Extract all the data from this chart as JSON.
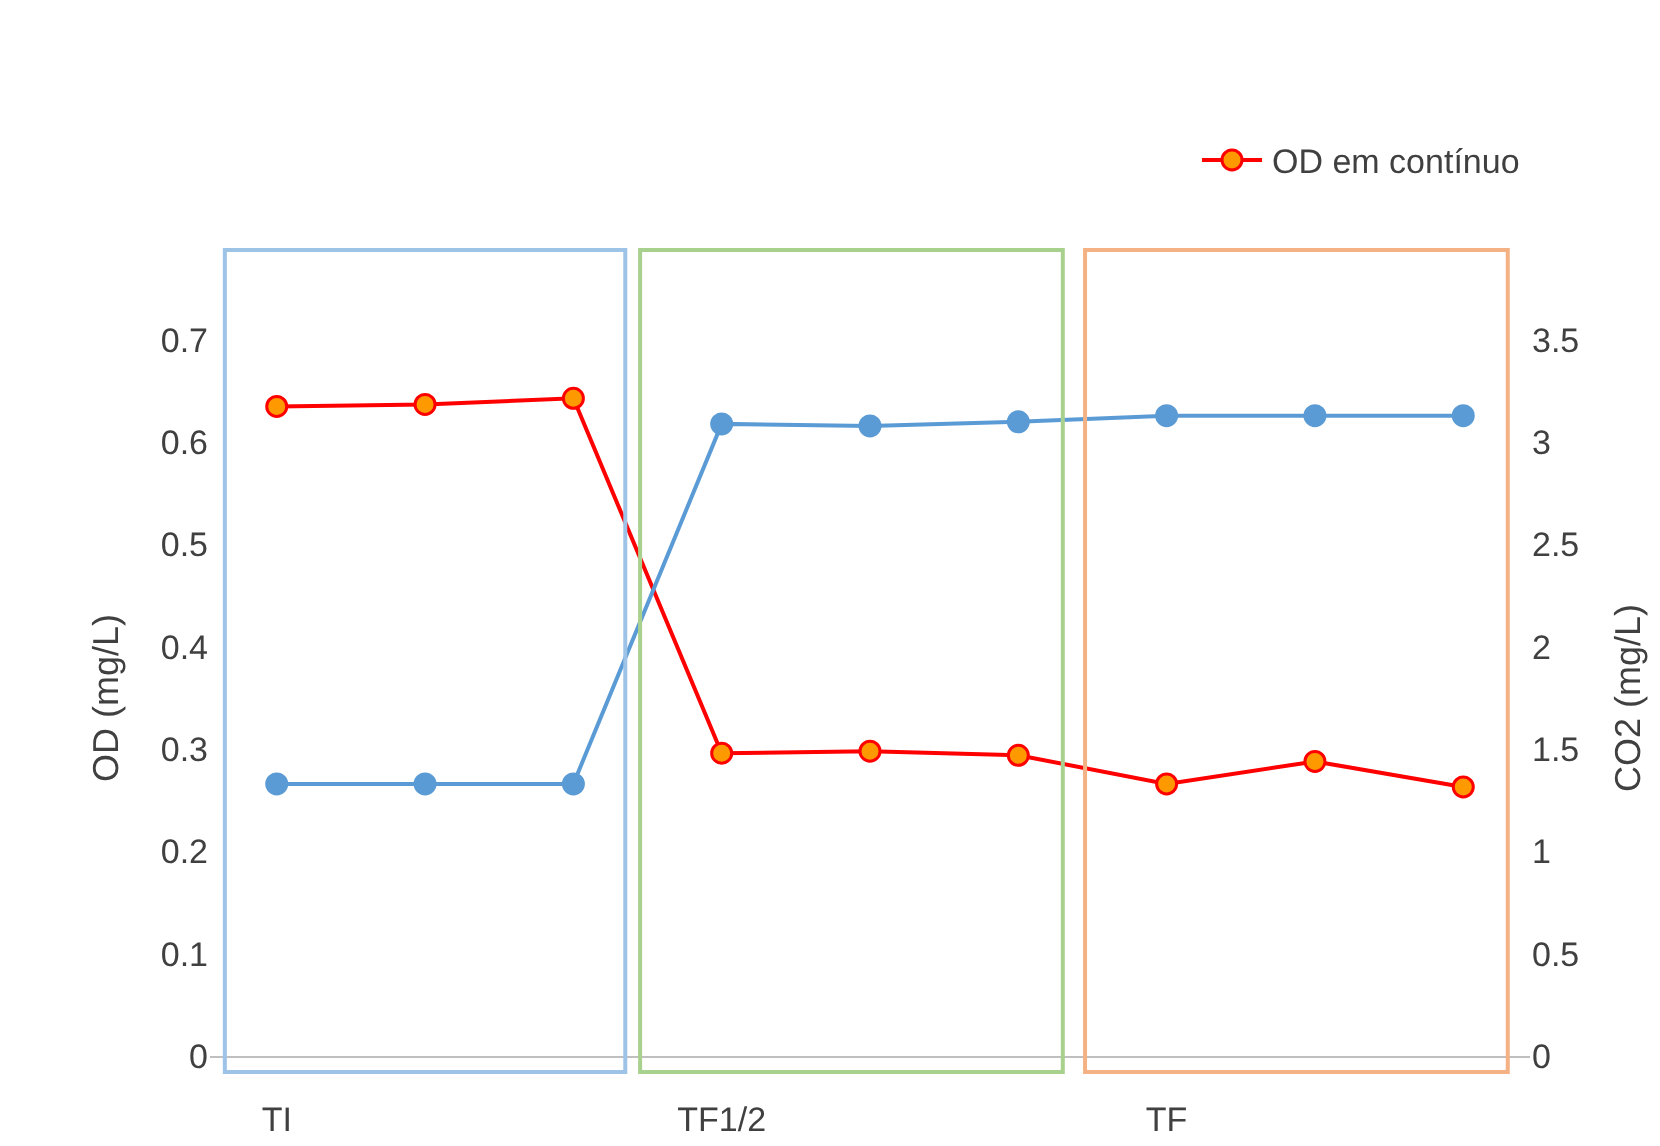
{
  "chart_data": {
    "type": "line",
    "ylabel": "OD (mg/L)",
    "y2label": "CO2 (mg/L)",
    "categories": [
      "TI",
      null,
      null,
      "TF1/2",
      null,
      null,
      "TF",
      null,
      null
    ],
    "series": [
      {
        "name": "OD em contínuo",
        "color": "#ff0000",
        "values": [
          0.635,
          0.637,
          0.643,
          0.296,
          0.298,
          0.294,
          0.266,
          0.288,
          0.263
        ]
      },
      {
        "color": "#5b9bd5",
        "axis": "y2",
        "values": [
          1.33,
          1.33,
          1.33,
          3.09,
          3.08,
          3.1,
          3.13,
          3.13,
          3.13
        ]
      }
    ],
    "ylim": [
      0,
      0.7
    ],
    "yticks": [
      0,
      0.1,
      0.2,
      0.3,
      0.4,
      0.5,
      0.6,
      0.7
    ],
    "y2lim": [
      0,
      3.5
    ],
    "y2ticks": [
      0,
      0.5,
      1,
      1.5,
      2,
      2.5,
      3,
      3.5
    ],
    "grid": false,
    "legend": "top right",
    "marker": "circle",
    "line_style": "solid"
  }
}
